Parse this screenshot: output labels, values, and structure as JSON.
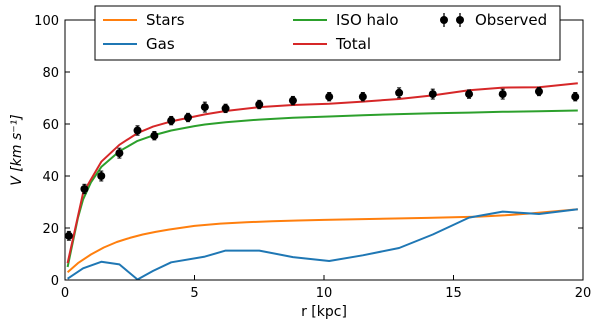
{
  "chart_data": {
    "type": "line",
    "xlabel": "r [kpc]",
    "ylabel": "V [km s⁻¹]",
    "xlim": [
      0,
      20
    ],
    "ylim": [
      0,
      100
    ],
    "xticks": [
      0,
      5,
      10,
      15,
      20
    ],
    "yticks": [
      0,
      20,
      40,
      60,
      80,
      100
    ],
    "legend_position": "top",
    "series": [
      {
        "name": "Stars",
        "color": "#ff7f0e",
        "x": [
          0.1,
          0.5,
          1.0,
          1.5,
          2.0,
          2.5,
          3.0,
          3.5,
          4.0,
          5.0,
          6.0,
          7.0,
          8.0,
          9.0,
          10.0,
          11.0,
          12.0,
          13.0,
          14.0,
          15.0,
          16.0,
          17.0,
          18.0,
          19.0,
          19.8
        ],
        "y": [
          3.0,
          6.5,
          9.8,
          12.5,
          14.6,
          16.2,
          17.5,
          18.5,
          19.4,
          20.8,
          21.7,
          22.2,
          22.6,
          22.9,
          23.1,
          23.3,
          23.5,
          23.7,
          23.9,
          24.1,
          24.4,
          24.9,
          25.6,
          26.5,
          27.2
        ]
      },
      {
        "name": "Gas",
        "color": "#1f77b4",
        "x": [
          0.1,
          0.7,
          1.4,
          2.1,
          2.8,
          3.4,
          4.1,
          5.4,
          6.2,
          7.5,
          8.8,
          10.2,
          11.5,
          12.9,
          14.2,
          15.6,
          16.9,
          18.3,
          19.8
        ],
        "y": [
          0.5,
          4.5,
          7.0,
          6.0,
          0.2,
          3.5,
          6.8,
          9.0,
          11.3,
          11.3,
          8.8,
          7.3,
          9.5,
          12.3,
          17.5,
          24.0,
          26.3,
          25.4,
          27.2
        ]
      },
      {
        "name": "ISO halo",
        "color": "#2ca02c",
        "x": [
          0.1,
          0.5,
          0.7,
          1.0,
          1.4,
          2.1,
          2.8,
          3.4,
          4.1,
          5.0,
          5.4,
          6.2,
          7.5,
          8.8,
          10.2,
          11.5,
          12.9,
          14.2,
          15.6,
          16.9,
          18.3,
          19.8
        ],
        "y": [
          5.0,
          24.0,
          31.0,
          37.5,
          43.5,
          49.5,
          53.5,
          55.6,
          57.5,
          59.2,
          59.8,
          60.7,
          61.7,
          62.4,
          62.9,
          63.4,
          63.8,
          64.1,
          64.4,
          64.7,
          64.9,
          65.2
        ]
      },
      {
        "name": "Total",
        "color": "#d62728",
        "x": [
          0.1,
          0.7,
          1.4,
          2.1,
          2.8,
          3.4,
          4.1,
          5.4,
          6.2,
          7.5,
          8.8,
          10.2,
          11.5,
          12.9,
          14.2,
          15.6,
          16.9,
          18.3,
          19.8
        ],
        "y": [
          6.5,
          33.5,
          45.5,
          52.0,
          56.5,
          59.0,
          61.0,
          63.7,
          65.0,
          66.5,
          67.3,
          67.8,
          68.6,
          69.6,
          71.0,
          73.0,
          74.0,
          74.1,
          75.7
        ]
      }
    ],
    "observed": {
      "name": "Observed",
      "color": "#000000",
      "x": [
        0.15,
        0.75,
        1.4,
        2.1,
        2.8,
        3.45,
        4.1,
        4.75,
        5.4,
        6.2,
        7.5,
        8.8,
        10.2,
        11.5,
        12.9,
        14.2,
        15.6,
        16.9,
        18.3,
        19.7
      ],
      "y": [
        17.0,
        35.0,
        40.0,
        48.8,
        57.5,
        55.5,
        61.3,
        62.5,
        66.5,
        66.0,
        67.5,
        69.0,
        70.5,
        70.5,
        72.0,
        71.5,
        71.5,
        71.5,
        72.5,
        70.5
      ],
      "err": [
        1.7,
        1.8,
        1.9,
        1.9,
        1.8,
        1.6,
        1.6,
        1.6,
        1.9,
        1.6,
        1.6,
        1.6,
        1.6,
        1.6,
        1.9,
        1.9,
        1.6,
        1.9,
        1.6,
        1.6
      ]
    }
  }
}
